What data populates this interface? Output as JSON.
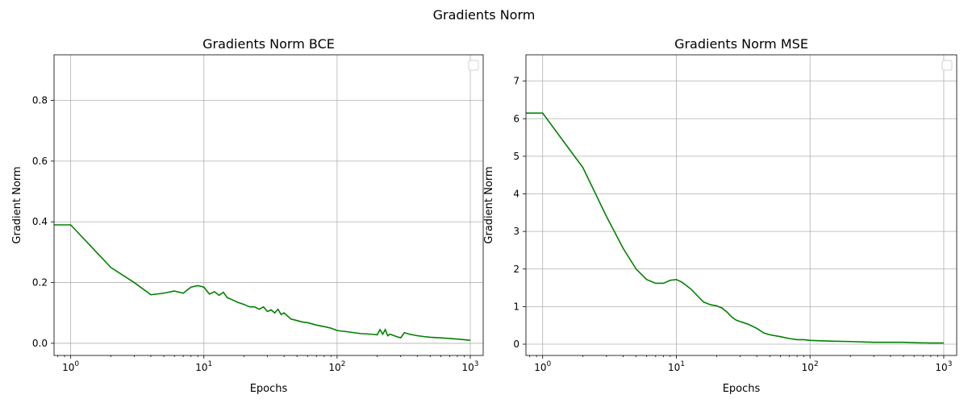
{
  "figure": {
    "suptitle": "Gradients Norm"
  },
  "chart_data": [
    {
      "type": "line",
      "title": "Gradients Norm BCE",
      "xlabel": "Epochs",
      "ylabel": "Gradient Norm",
      "xscale": "log",
      "xlim": [
        0.75,
        1250
      ],
      "ylim": [
        -0.04,
        0.95
      ],
      "xticks": [
        1,
        10,
        100,
        1000
      ],
      "xtick_labels": [
        "10^0",
        "10^1",
        "10^2",
        "10^3"
      ],
      "yticks": [
        0.0,
        0.2,
        0.4,
        0.6,
        0.8
      ],
      "ytick_labels": [
        "0.0",
        "0.2",
        "0.4",
        "0.6",
        "0.8"
      ],
      "grid": true,
      "legend": "top-right",
      "color": "#008000",
      "series": [
        {
          "name": "",
          "x": [
            0.75,
            1,
            2,
            3,
            4,
            5,
            6,
            7,
            8,
            9,
            10,
            11,
            12,
            13,
            14,
            15,
            16,
            18,
            20,
            22,
            24,
            26,
            28,
            30,
            32,
            34,
            36,
            38,
            40,
            45,
            50,
            55,
            60,
            70,
            80,
            90,
            100,
            120,
            150,
            180,
            200,
            210,
            220,
            230,
            240,
            250,
            280,
            300,
            320,
            350,
            400,
            450,
            500,
            600,
            700,
            800,
            900,
            1000
          ],
          "y": [
            0.39,
            0.39,
            0.25,
            0.2,
            0.16,
            0.165,
            0.172,
            0.165,
            0.185,
            0.19,
            0.185,
            0.162,
            0.17,
            0.158,
            0.168,
            0.15,
            0.145,
            0.135,
            0.128,
            0.12,
            0.12,
            0.112,
            0.12,
            0.105,
            0.11,
            0.1,
            0.112,
            0.095,
            0.1,
            0.08,
            0.075,
            0.07,
            0.068,
            0.06,
            0.055,
            0.05,
            0.042,
            0.038,
            0.032,
            0.03,
            0.028,
            0.045,
            0.03,
            0.045,
            0.025,
            0.03,
            0.022,
            0.018,
            0.035,
            0.03,
            0.025,
            0.022,
            0.02,
            0.018,
            0.016,
            0.014,
            0.012,
            0.01
          ]
        }
      ]
    },
    {
      "type": "line",
      "title": "Gradients Norm MSE",
      "xlabel": "Epochs",
      "ylabel": "Gradient Norm",
      "xscale": "log",
      "xlim": [
        0.75,
        1250
      ],
      "ylim": [
        -0.3,
        7.7
      ],
      "xticks": [
        1,
        10,
        100,
        1000
      ],
      "xtick_labels": [
        "10^0",
        "10^1",
        "10^2",
        "10^3"
      ],
      "yticks": [
        0,
        1,
        2,
        3,
        4,
        5,
        6,
        7
      ],
      "ytick_labels": [
        "0",
        "1",
        "2",
        "3",
        "4",
        "5",
        "6",
        "7"
      ],
      "grid": true,
      "legend": "top-right",
      "color": "#008000",
      "series": [
        {
          "name": "",
          "x": [
            0.75,
            1,
            1.5,
            2,
            3,
            4,
            5,
            6,
            7,
            8,
            9,
            10,
            11,
            12,
            13,
            14,
            15,
            16,
            18,
            20,
            22,
            24,
            26,
            28,
            30,
            32,
            35,
            40,
            45,
            50,
            60,
            70,
            80,
            90,
            100,
            120,
            150,
            200,
            300,
            400,
            500,
            600,
            800,
            1000
          ],
          "y": [
            6.15,
            6.15,
            5.3,
            4.7,
            3.4,
            2.55,
            2.0,
            1.72,
            1.62,
            1.62,
            1.7,
            1.72,
            1.65,
            1.55,
            1.45,
            1.33,
            1.22,
            1.12,
            1.05,
            1.02,
            0.96,
            0.85,
            0.72,
            0.64,
            0.6,
            0.57,
            0.52,
            0.42,
            0.3,
            0.25,
            0.2,
            0.15,
            0.12,
            0.12,
            0.1,
            0.09,
            0.08,
            0.07,
            0.05,
            0.05,
            0.05,
            0.04,
            0.03,
            0.03
          ]
        }
      ]
    }
  ]
}
